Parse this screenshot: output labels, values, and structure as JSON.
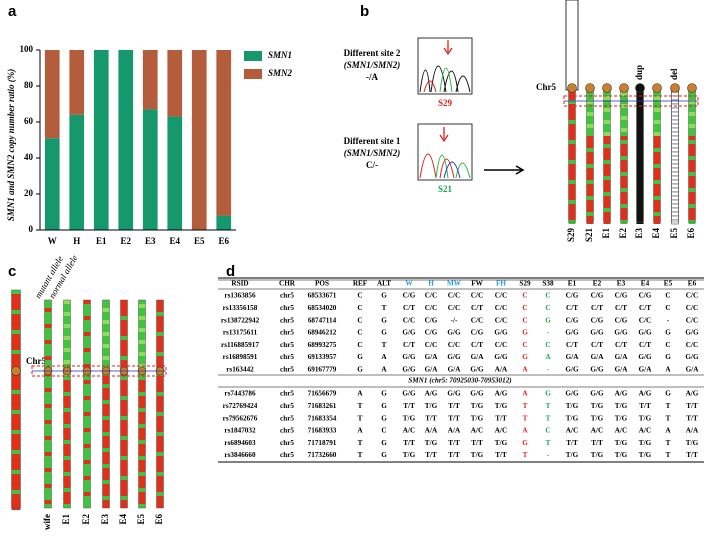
{
  "panel_labels": [
    "a",
    "b",
    "c",
    "d"
  ],
  "chart_data": {
    "type": "bar",
    "stacked": true,
    "y_label": "SMN1 and SMN2 copy number ratio (%)",
    "categories": [
      "W",
      "H",
      "E1",
      "E2",
      "E3",
      "E4",
      "E5",
      "E6"
    ],
    "series": [
      {
        "name": "SMN1",
        "color": "#14986c",
        "values": [
          51,
          64,
          100,
          100,
          67,
          63,
          0,
          8
        ]
      },
      {
        "name": "SMN2",
        "color": "#b45d3c",
        "values": [
          49,
          36,
          0,
          0,
          33,
          37,
          100,
          92
        ]
      }
    ],
    "ylim": [
      0,
      100
    ],
    "yticks": [
      0,
      20,
      40,
      60,
      80,
      100
    ],
    "legend": "right"
  },
  "panel_b": {
    "site2": [
      "Different site 2",
      "(SMN1/SMN2)",
      "-/A"
    ],
    "site2_sample": "S29",
    "site1": [
      "Different site 1",
      "(SMN1/SMN2)",
      "C/-"
    ],
    "site1_sample": "S21",
    "chromosome": "Chr5",
    "dup": "dup",
    "del": "del",
    "samples": [
      "S29",
      "S21",
      "E1",
      "E2",
      "E3",
      "E4",
      "E5",
      "E6"
    ]
  },
  "panel_c": {
    "chromosome": "Chr5",
    "mutant": "mutant allele",
    "normal": "normal allele",
    "samples": [
      "wife",
      "E1",
      "E2",
      "E3",
      "E4",
      "E5",
      "E6"
    ]
  },
  "table": {
    "header": [
      "RSID",
      "CHR",
      "POS",
      "REF",
      "ALT",
      "W",
      "H",
      "MW",
      "FW",
      "FH",
      "S29",
      "S38",
      "E1",
      "E2",
      "E3",
      "E4",
      "E5",
      "E6"
    ],
    "header_colors": [
      "#000000",
      "#000000",
      "#000000",
      "#000000",
      "#000000",
      "#2a9fd6",
      "#2a9fd6",
      "#2a9fd6",
      "#000000",
      "#2a9fd6",
      "#000000",
      "#000000",
      "#000000",
      "#000000",
      "#000000",
      "#000000",
      "#000000",
      "#000000"
    ],
    "column_colors": [
      "#000000",
      "#000000",
      "#000000",
      "#000000",
      "#000000",
      "#000000",
      "#000000",
      "#000000",
      "#000000",
      "#000000",
      "#e0201c",
      "#1aa34a",
      "#000000",
      "#000000",
      "#000000",
      "#000000",
      "#000000",
      "#000000"
    ],
    "rows_top": [
      [
        "rs1363856",
        "chr5",
        "68533671",
        "C",
        "G",
        "C/G",
        "C/C",
        "C/C",
        "C/C",
        "C/C",
        "C",
        "C",
        "C/G",
        "C/G",
        "C/G",
        "C/G",
        "C",
        "C/C"
      ],
      [
        "rs13356158",
        "chr5",
        "68534020",
        "C",
        "T",
        "C/T",
        "C/C",
        "C/C",
        "C/T",
        "C/C",
        "C",
        "C",
        "C/T",
        "C/T",
        "C/T",
        "C/T",
        "C",
        "C/C"
      ],
      [
        "rs138722942",
        "chr5",
        "68747114",
        "C",
        "G",
        "C/C",
        "C/G",
        "-/-",
        "C/C",
        "C/C",
        "C",
        "G",
        "C/G",
        "C/G",
        "C/G",
        "C/C",
        "-",
        "C/C"
      ],
      [
        "rs13175611",
        "chr5",
        "68946212",
        "C",
        "G",
        "G/G",
        "C/G",
        "G/G",
        "C/G",
        "G/G",
        "G",
        "-",
        "G/G",
        "G/G",
        "G/G",
        "G/G",
        "G",
        "G/G"
      ],
      [
        "rs116885917",
        "chr5",
        "68993275",
        "C",
        "T",
        "C/T",
        "C/C",
        "C/C",
        "C/T",
        "C/C",
        "C",
        "C",
        "C/T",
        "C/T",
        "C/T",
        "C/T",
        "C",
        "C/C"
      ],
      [
        "rs16898591",
        "chr5",
        "69133957",
        "G",
        "A",
        "G/G",
        "G/A",
        "G/G",
        "G/A",
        "G/G",
        "G",
        "A",
        "G/A",
        "G/A",
        "G/A",
        "G/G",
        "G",
        "G/G"
      ],
      [
        "rs163442",
        "chr5",
        "69167779",
        "G",
        "A",
        "G/G",
        "G/A",
        "G/A",
        "G/G",
        "A/A",
        "A",
        "-",
        "G/G",
        "G/G",
        "G/A",
        "G/A",
        "A",
        "G/A"
      ]
    ],
    "section": "SMN1 (chr5: 70925030-70953012)",
    "rows_bottom": [
      [
        "rs7443786",
        "chr5",
        "71656679",
        "A",
        "G",
        "G/G",
        "A/G",
        "G/G",
        "G/G",
        "A/G",
        "A",
        "G",
        "G/G",
        "G/G",
        "A/G",
        "A/G",
        "G",
        "A/G"
      ],
      [
        "rs72769424",
        "chr5",
        "71683261",
        "T",
        "G",
        "T/T",
        "T/G",
        "T/T",
        "T/G",
        "T/G",
        "T",
        "T",
        "T/G",
        "T/G",
        "T/G",
        "T/T",
        "T",
        "T/T"
      ],
      [
        "rs79562676",
        "chr5",
        "71683354",
        "T",
        "G",
        "T/G",
        "T/T",
        "T/T",
        "T/G",
        "T/T",
        "T",
        "T",
        "T/G",
        "T/G",
        "T/G",
        "T/G",
        "T",
        "T/T"
      ],
      [
        "rs1847032",
        "chr5",
        "71683933",
        "A",
        "C",
        "A/C",
        "A/A",
        "A/A",
        "A/C",
        "A/C",
        "A",
        "C",
        "A/C",
        "A/C",
        "A/C",
        "A/C",
        "A",
        "A/A"
      ],
      [
        "rs6894603",
        "chr5",
        "71718791",
        "T",
        "G",
        "T/T",
        "T/G",
        "T/T",
        "T/T",
        "T/G",
        "G",
        "T",
        "T/T",
        "T/T",
        "T/G",
        "T/G",
        "T",
        "T/G"
      ],
      [
        "rs3846660",
        "chr5",
        "71732660",
        "T",
        "G",
        "T/G",
        "T/T",
        "T/T",
        "T/G",
        "T/T",
        "T",
        "-",
        "T/G",
        "T/G",
        "T/G",
        "T/G",
        "T",
        "T/T"
      ]
    ]
  }
}
